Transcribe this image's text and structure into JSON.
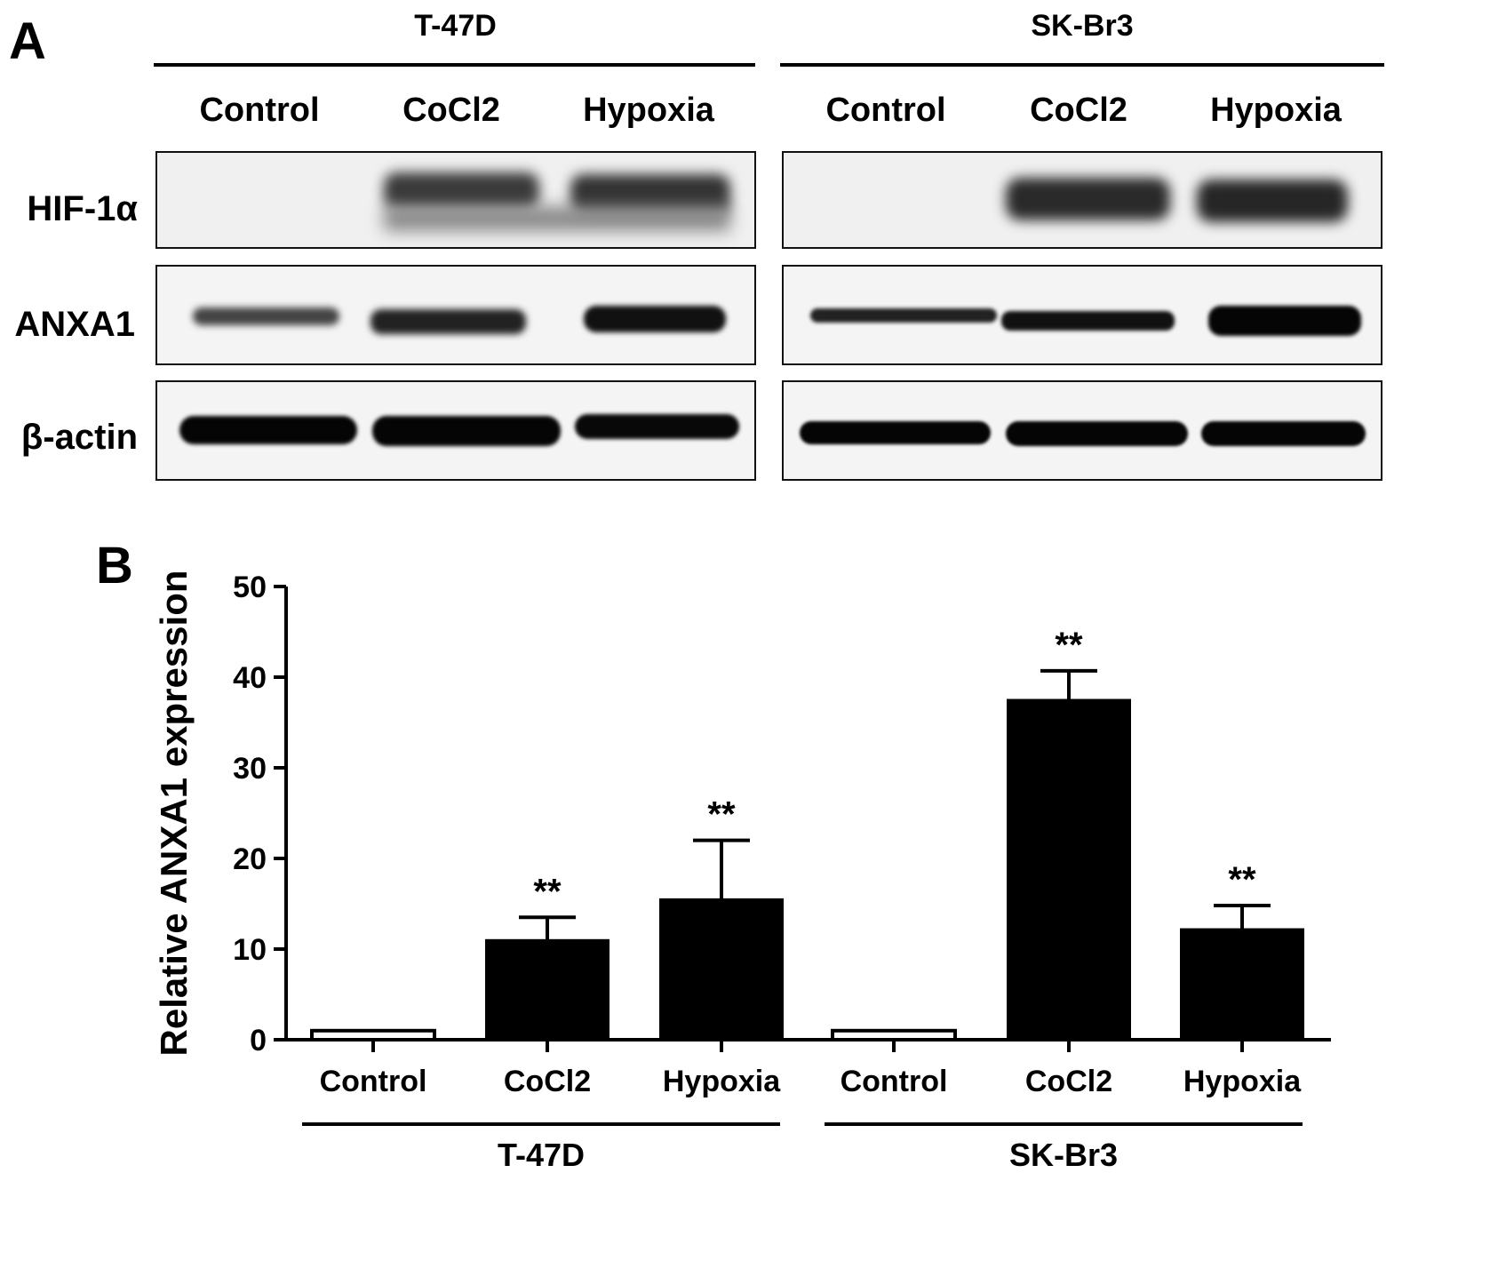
{
  "panel_a": {
    "letter": "A",
    "groups": [
      {
        "name": "T-47D",
        "lanes": [
          "Control",
          "CoCl2",
          "Hypoxia"
        ]
      },
      {
        "name": "SK-Br3",
        "lanes": [
          "Control",
          "CoCl2",
          "Hypoxia"
        ]
      }
    ],
    "rows": [
      "HIF-1α",
      "ANXA1",
      "β-actin"
    ]
  },
  "panel_b": {
    "letter": "B"
  },
  "chart_data": {
    "type": "bar",
    "ylabel": "Relative ANXA1 expression",
    "ylim": [
      0,
      50
    ],
    "yticks": [
      "0",
      "10",
      "20",
      "30",
      "40",
      "50"
    ],
    "categories": [
      "Control",
      "CoCl2",
      "Hypoxia",
      "Control",
      "CoCl2",
      "Hypoxia"
    ],
    "groups": [
      "T-47D",
      "SK-Br3"
    ],
    "values": [
      1,
      11,
      15.5,
      1,
      37.5,
      12.2
    ],
    "errors": [
      0,
      2.5,
      6.5,
      0,
      3.2,
      2.6
    ],
    "significance": [
      "",
      "**",
      "**",
      "",
      "**",
      "**"
    ],
    "bar_fill": [
      "#ffffff",
      "#000000",
      "#000000",
      "#ffffff",
      "#000000",
      "#000000"
    ]
  }
}
